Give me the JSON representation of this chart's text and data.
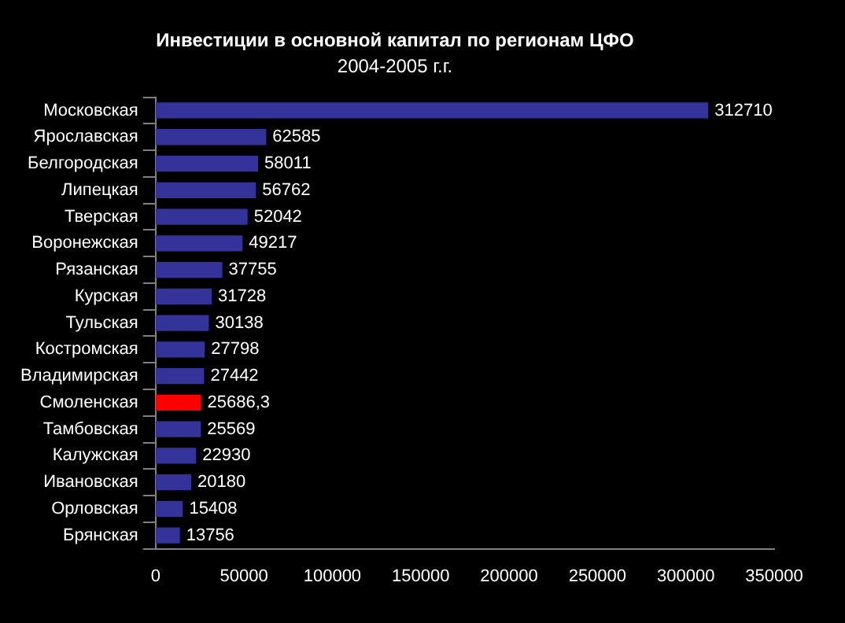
{
  "chart_data": {
    "type": "bar",
    "orientation": "horizontal",
    "title": "Инвестиции в основной капитал по регионам ЦФО",
    "subtitle": "2004-2005 г.г.",
    "categories": [
      "Московская",
      "Ярославская",
      "Белгородская",
      "Липецкая",
      "Тверская",
      "Воронежская",
      "Рязанская",
      "Курская",
      "Тульская",
      "Костромская",
      "Владимирская",
      "Смоленская",
      "Тамбовская",
      "Калужская",
      "Ивановская",
      "Орловская",
      "Брянская"
    ],
    "values": [
      312710,
      62585,
      58011,
      56762,
      52042,
      49217,
      37755,
      31728,
      30138,
      27798,
      27442,
      25686.3,
      25569,
      22930,
      20180,
      15408,
      13756
    ],
    "colors": [
      "#333399",
      "#333399",
      "#333399",
      "#333399",
      "#333399",
      "#333399",
      "#333399",
      "#333399",
      "#333399",
      "#333399",
      "#333399",
      "#ff0000",
      "#333399",
      "#333399",
      "#333399",
      "#333399",
      "#333399"
    ],
    "value_labels": [
      "312710",
      "62585",
      "58011",
      "56762",
      "52042",
      "49217",
      "37755",
      "31728",
      "30138",
      "27798",
      "27442",
      "25686,3",
      "25569",
      "22930",
      "20180",
      "15408",
      "13756"
    ],
    "xlim": [
      0,
      350000
    ],
    "xticks": [
      0,
      50000,
      100000,
      150000,
      200000,
      250000,
      300000,
      350000
    ],
    "grid": false,
    "legend": false
  }
}
